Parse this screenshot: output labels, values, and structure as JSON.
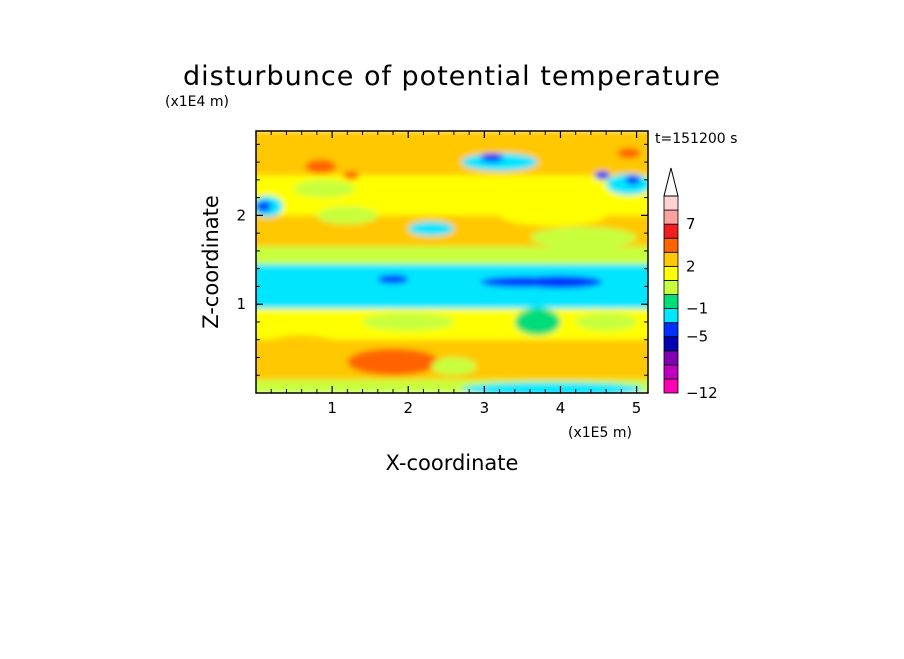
{
  "chart_data": {
    "type": "heatmap",
    "title": "disturbunce of potential temperature",
    "time_label": "t=151200 s",
    "xlabel": "X-coordinate",
    "ylabel": "Z-coordinate",
    "x_scale_label": "(x1E5 m)",
    "y_scale_label": "(x1E4 m)",
    "xlim": [
      0,
      5.15
    ],
    "ylim": [
      0,
      2.95
    ],
    "xticks": [
      1,
      2,
      3,
      4,
      5
    ],
    "yticks": [
      1,
      2
    ],
    "colorbar": {
      "levels": [
        -12,
        -11,
        -9,
        -7,
        -5,
        -3,
        -1,
        0,
        1,
        2,
        3,
        5,
        7,
        9,
        11
      ],
      "tick_labels": [
        "-12",
        "-5",
        "-1",
        "2",
        "7"
      ],
      "colors": [
        "#ff00b4",
        "#c000c0",
        "#8000b4",
        "#0000b4",
        "#0030ff",
        "#00e6ff",
        "#00dc78",
        "#c8ff3c",
        "#ffff00",
        "#ffc800",
        "#ff6400",
        "#f01e1e",
        "#ffa0a0",
        "#ffd2d2"
      ],
      "extend_top": true
    },
    "bands": [
      {
        "z0": 0.0,
        "z1": 0.15,
        "value": 0.5
      },
      {
        "z0": 0.15,
        "z1": 0.6,
        "value": 2.5
      },
      {
        "z0": 0.6,
        "z1": 0.95,
        "value": 1.5
      },
      {
        "z0": 0.95,
        "z1": 1.45,
        "value": -1.5
      },
      {
        "z0": 1.45,
        "z1": 1.65,
        "value": 0.5
      },
      {
        "z0": 1.65,
        "z1": 2.0,
        "value": 2.5
      },
      {
        "z0": 2.0,
        "z1": 2.45,
        "value": 1.5
      },
      {
        "z0": 2.45,
        "z1": 2.95,
        "value": 2.5
      }
    ],
    "features": [
      {
        "x": 1.8,
        "z": 0.35,
        "rx": 0.6,
        "rz": 0.15,
        "value": 4
      },
      {
        "x": 0.6,
        "z": 0.45,
        "rx": 0.6,
        "rz": 0.2,
        "value": 2.5
      },
      {
        "x": 1.8,
        "z": 1.28,
        "rx": 0.2,
        "rz": 0.05,
        "value": -4
      },
      {
        "x": 3.5,
        "z": 1.25,
        "rx": 0.55,
        "rz": 0.06,
        "value": -4
      },
      {
        "x": 4.0,
        "z": 1.25,
        "rx": 0.55,
        "rz": 0.07,
        "value": -4
      },
      {
        "x": 3.9,
        "z": 0.05,
        "rx": 1.2,
        "rz": 0.07,
        "value": -2
      },
      {
        "x": 0.15,
        "z": 2.1,
        "rx": 0.2,
        "rz": 0.12,
        "value": -2
      },
      {
        "x": 0.1,
        "z": 2.1,
        "rx": 0.1,
        "rz": 0.06,
        "value": -4
      },
      {
        "x": 3.2,
        "z": 2.6,
        "rx": 0.5,
        "rz": 0.1,
        "value": -1.5
      },
      {
        "x": 3.1,
        "z": 2.65,
        "rx": 0.15,
        "rz": 0.05,
        "value": -4
      },
      {
        "x": 4.9,
        "z": 2.35,
        "rx": 0.3,
        "rz": 0.12,
        "value": -1.5
      },
      {
        "x": 4.95,
        "z": 2.4,
        "rx": 0.1,
        "rz": 0.05,
        "value": -4
      },
      {
        "x": 4.55,
        "z": 2.45,
        "rx": 0.1,
        "rz": 0.05,
        "value": -4
      },
      {
        "x": 2.3,
        "z": 1.85,
        "rx": 0.3,
        "rz": 0.08,
        "value": -1.5
      },
      {
        "x": 0.9,
        "z": 2.3,
        "rx": 0.4,
        "rz": 0.1,
        "value": 0.5
      },
      {
        "x": 1.2,
        "z": 2.0,
        "rx": 0.4,
        "rz": 0.1,
        "value": 0.5
      },
      {
        "x": 3.9,
        "z": 2.0,
        "rx": 0.7,
        "rz": 0.12,
        "value": 1.5
      },
      {
        "x": 4.3,
        "z": 1.75,
        "rx": 0.7,
        "rz": 0.12,
        "value": 0.5
      },
      {
        "x": 0.85,
        "z": 2.55,
        "rx": 0.2,
        "rz": 0.08,
        "value": 4
      },
      {
        "x": 1.25,
        "z": 2.45,
        "rx": 0.1,
        "rz": 0.05,
        "value": 4
      },
      {
        "x": 4.9,
        "z": 2.7,
        "rx": 0.15,
        "rz": 0.06,
        "value": 4
      },
      {
        "x": 2.6,
        "z": 0.3,
        "rx": 0.3,
        "rz": 0.1,
        "value": 0.5
      },
      {
        "x": 2.0,
        "z": 0.8,
        "rx": 0.6,
        "rz": 0.1,
        "value": 0.5
      },
      {
        "x": 3.7,
        "z": 0.8,
        "rx": 0.3,
        "rz": 0.15,
        "value": -0.5
      },
      {
        "x": 4.6,
        "z": 0.8,
        "rx": 0.4,
        "rz": 0.1,
        "value": 0.5
      }
    ]
  }
}
